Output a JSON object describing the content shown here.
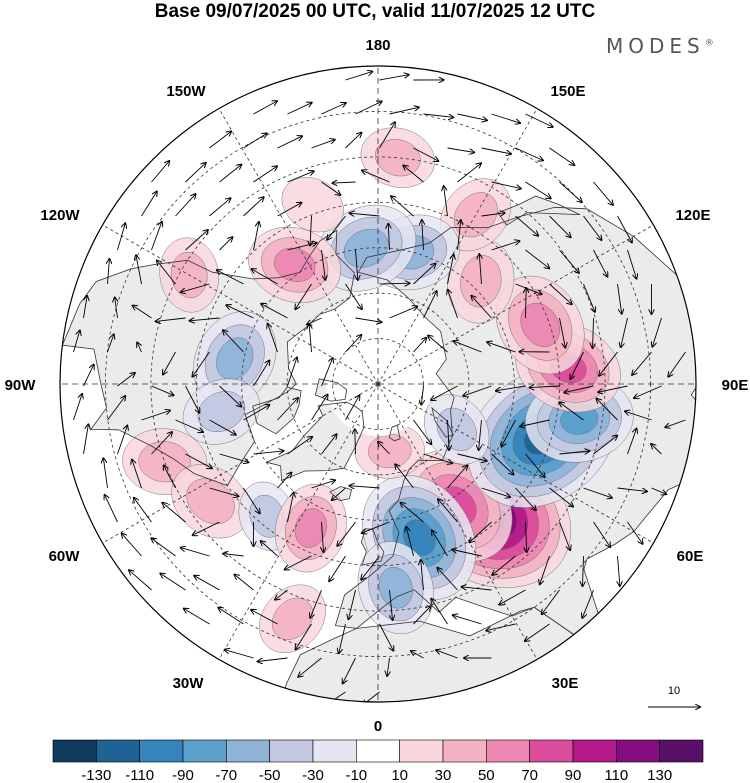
{
  "title": "Base 09/07/2025 00 UTC, valid 11/07/2025 12 UTC",
  "brand": "MODES",
  "brand_mark": "®",
  "longitude_labels": {
    "lon_180": "180",
    "lon_150e": "150E",
    "lon_120e": "120E",
    "lon_90e": "90E",
    "lon_60e": "60E",
    "lon_30e": "30E",
    "lon_0": "0",
    "lon_30w": "30W",
    "lon_60w": "60W",
    "lon_90w": "90W",
    "lon_120w": "120W",
    "lon_150w": "150W"
  },
  "reference_vector": {
    "label": "10"
  },
  "colorbar": {
    "ticks": [
      "-130",
      "-110",
      "-90",
      "-70",
      "-50",
      "-30",
      "-10",
      "10",
      "30",
      "50",
      "70",
      "90",
      "110",
      "130"
    ],
    "colors": [
      "#103a5e",
      "#1d6494",
      "#3584bb",
      "#5aa0cc",
      "#8fb4d8",
      "#c2c8e2",
      "#e6e6f2",
      "#ffffff",
      "#f8d7dd",
      "#f3b3c4",
      "#ec88b2",
      "#dc4c9c",
      "#b5198a",
      "#840c80",
      "#581068"
    ]
  },
  "colors": {
    "land": "#ebebeb",
    "ocean": "#ffffff",
    "coast": "#333333"
  },
  "anomalies": [
    {
      "lon": 40,
      "lat": 52,
      "value": 125
    },
    {
      "lon": 33,
      "lat": 58,
      "value": 75
    },
    {
      "lon": 15,
      "lat": 55,
      "value": -85
    },
    {
      "lon": 5,
      "lat": 45,
      "value": -45
    },
    {
      "lon": 72,
      "lat": 52,
      "value": -115
    },
    {
      "lon": 80,
      "lat": 45,
      "value": -60
    },
    {
      "lon": 95,
      "lat": 48,
      "value": 60
    },
    {
      "lon": 110,
      "lat": 52,
      "value": 55
    },
    {
      "lon": 135,
      "lat": 58,
      "value": 35
    },
    {
      "lon": 150,
      "lat": 47,
      "value": 30
    },
    {
      "lon": 165,
      "lat": 60,
      "value": -45
    },
    {
      "lon": 175,
      "lat": 40,
      "value": 25
    },
    {
      "lon": -175,
      "lat": 60,
      "value": -55
    },
    {
      "lon": -145,
      "lat": 58,
      "value": 45
    },
    {
      "lon": -160,
      "lat": 48,
      "value": 15
    },
    {
      "lon": -120,
      "lat": 42,
      "value": 25
    },
    {
      "lon": -100,
      "lat": 58,
      "value": -50
    },
    {
      "lon": -80,
      "lat": 55,
      "value": -30
    },
    {
      "lon": -70,
      "lat": 40,
      "value": 35
    },
    {
      "lon": -55,
      "lat": 45,
      "value": 35
    },
    {
      "lon": -40,
      "lat": 52,
      "value": -20
    },
    {
      "lon": -25,
      "lat": 55,
      "value": 40
    },
    {
      "lon": -20,
      "lat": 35,
      "value": 25
    },
    {
      "lon": 10,
      "lat": 75,
      "value": 20
    },
    {
      "lon": 60,
      "lat": 70,
      "value": -25
    }
  ],
  "landmasses": [
    {
      "name": "eurasia",
      "points": [
        [
          -10,
          36
        ],
        [
          -9,
          43
        ],
        [
          -2,
          48
        ],
        [
          5,
          52
        ],
        [
          8,
          57
        ],
        [
          5,
          62
        ],
        [
          10,
          64
        ],
        [
          15,
          68
        ],
        [
          20,
          70
        ],
        [
          28,
          71
        ],
        [
          40,
          68
        ],
        [
          55,
          70
        ],
        [
          70,
          73
        ],
        [
          80,
          73
        ],
        [
          100,
          77
        ],
        [
          110,
          74
        ],
        [
          130,
          72
        ],
        [
          145,
          72
        ],
        [
          160,
          70
        ],
        [
          175,
          67
        ],
        [
          -170,
          65
        ],
        [
          -175,
          62
        ],
        [
          170,
          60
        ],
        [
          160,
          57
        ],
        [
          155,
          52
        ],
        [
          145,
          48
        ],
        [
          140,
          42
        ],
        [
          135,
          35
        ],
        [
          130,
          30
        ],
        [
          120,
          25
        ],
        [
          110,
          20
        ],
        [
          105,
          10
        ],
        [
          100,
          5
        ],
        [
          95,
          15
        ],
        [
          88,
          21
        ],
        [
          80,
          10
        ],
        [
          75,
          15
        ],
        [
          70,
          22
        ],
        [
          60,
          25
        ],
        [
          56,
          27
        ],
        [
          50,
          30
        ],
        [
          48,
          29
        ],
        [
          42,
          15
        ],
        [
          38,
          20
        ],
        [
          35,
          30
        ],
        [
          30,
          31
        ],
        [
          25,
          36
        ],
        [
          20,
          40
        ],
        [
          15,
          38
        ],
        [
          10,
          44
        ],
        [
          5,
          43
        ],
        [
          0,
          40
        ],
        [
          -5,
          36
        ]
      ]
    },
    {
      "name": "northamerica",
      "points": [
        [
          -168,
          65
        ],
        [
          -162,
          70
        ],
        [
          -150,
          71
        ],
        [
          -140,
          70
        ],
        [
          -130,
          70
        ],
        [
          -115,
          68
        ],
        [
          -100,
          70
        ],
        [
          -90,
          72
        ],
        [
          -85,
          70
        ],
        [
          -80,
          65
        ],
        [
          -77,
          60
        ],
        [
          -65,
          60
        ],
        [
          -60,
          55
        ],
        [
          -56,
          50
        ],
        [
          -64,
          45
        ],
        [
          -70,
          42
        ],
        [
          -75,
          38
        ],
        [
          -80,
          32
        ],
        [
          -81,
          26
        ],
        [
          -85,
          30
        ],
        [
          -90,
          29
        ],
        [
          -97,
          27
        ],
        [
          -97,
          20
        ],
        [
          -105,
          22
        ],
        [
          -110,
          24
        ],
        [
          -115,
          30
        ],
        [
          -118,
          34
        ],
        [
          -123,
          40
        ],
        [
          -124,
          46
        ],
        [
          -130,
          54
        ],
        [
          -137,
          58
        ],
        [
          -145,
          60
        ],
        [
          -152,
          58
        ],
        [
          -158,
          56
        ],
        [
          -165,
          55
        ],
        [
          -162,
          60
        ]
      ]
    },
    {
      "name": "greenland",
      "points": [
        [
          -55,
          60
        ],
        [
          -50,
          62
        ],
        [
          -45,
          60
        ],
        [
          -40,
          65
        ],
        [
          -30,
          68
        ],
        [
          -22,
          70
        ],
        [
          -20,
          75
        ],
        [
          -18,
          80
        ],
        [
          -30,
          83
        ],
        [
          -45,
          83
        ],
        [
          -60,
          82
        ],
        [
          -68,
          78
        ],
        [
          -70,
          76
        ],
        [
          -60,
          76
        ],
        [
          -55,
          70
        ],
        [
          -52,
          66
        ]
      ]
    },
    {
      "name": "africa",
      "points": [
        [
          -17,
          21
        ],
        [
          -16,
          28
        ],
        [
          -10,
          33
        ],
        [
          -5,
          36
        ],
        [
          10,
          37
        ],
        [
          20,
          31
        ],
        [
          32,
          31
        ],
        [
          35,
          30
        ],
        [
          38,
          20
        ],
        [
          42,
          15
        ],
        [
          45,
          12
        ],
        [
          51,
          12
        ],
        [
          48,
          5
        ],
        [
          42,
          0
        ],
        [
          38,
          -5
        ],
        [
          30,
          0
        ],
        [
          15,
          0
        ],
        [
          8,
          4
        ],
        [
          -5,
          5
        ],
        [
          -13,
          8
        ],
        [
          -17,
          14
        ]
      ]
    },
    {
      "name": "uk",
      "points": [
        [
          -5,
          50
        ],
        [
          1,
          51
        ],
        [
          2,
          53
        ],
        [
          0,
          55
        ],
        [
          -2,
          58
        ],
        [
          -5,
          58
        ],
        [
          -6,
          55
        ],
        [
          -4,
          53
        ]
      ]
    },
    {
      "name": "iceland",
      "points": [
        [
          -24,
          64
        ],
        [
          -20,
          66
        ],
        [
          -14,
          66
        ],
        [
          -14,
          64
        ],
        [
          -18,
          63
        ]
      ]
    },
    {
      "name": "svalbard",
      "points": [
        [
          12,
          78
        ],
        [
          18,
          80
        ],
        [
          25,
          80
        ],
        [
          22,
          77
        ],
        [
          16,
          77
        ]
      ]
    },
    {
      "name": "novaya",
      "points": [
        [
          52,
          71
        ],
        [
          57,
          75
        ],
        [
          66,
          77
        ],
        [
          62,
          73
        ],
        [
          56,
          70
        ]
      ]
    },
    {
      "name": "baffin",
      "points": [
        [
          -80,
          62
        ],
        [
          -72,
          62
        ],
        [
          -64,
          65
        ],
        [
          -68,
          70
        ],
        [
          -75,
          72
        ],
        [
          -85,
          73
        ],
        [
          -88,
          70
        ],
        [
          -82,
          68
        ]
      ]
    },
    {
      "name": "ellesmere",
      "points": [
        [
          -95,
          77
        ],
        [
          -80,
          76
        ],
        [
          -70,
          79
        ],
        [
          -65,
          82
        ],
        [
          -80,
          83
        ],
        [
          -92,
          81
        ]
      ]
    },
    {
      "name": "japan",
      "points": [
        [
          130,
          32
        ],
        [
          135,
          34
        ],
        [
          140,
          36
        ],
        [
          142,
          40
        ],
        [
          145,
          44
        ],
        [
          141,
          45
        ],
        [
          139,
          40
        ],
        [
          134,
          36
        ]
      ]
    }
  ]
}
